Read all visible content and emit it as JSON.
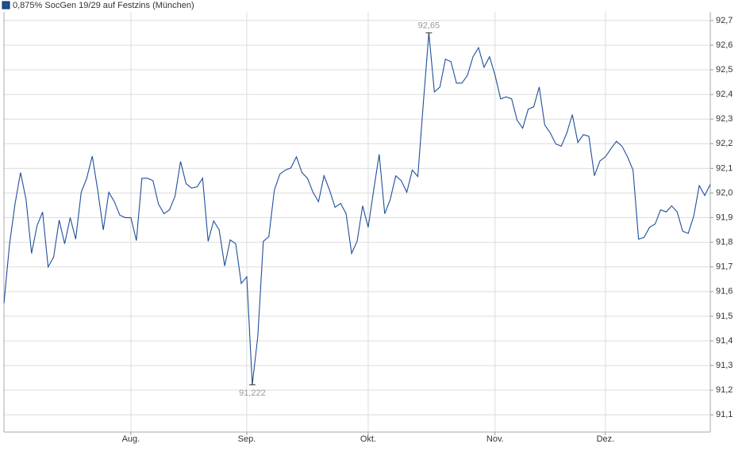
{
  "chart_data": {
    "type": "line",
    "title": "0,875% SocGen 19/29 auf Festzins (München)",
    "categories": [
      null,
      null,
      null,
      null,
      null,
      null,
      null,
      null,
      null,
      null,
      null,
      null,
      null,
      null,
      null,
      null,
      null,
      null,
      null,
      null,
      null,
      null,
      null,
      "Aug.",
      null,
      null,
      null,
      null,
      null,
      null,
      null,
      null,
      null,
      null,
      null,
      null,
      null,
      null,
      null,
      null,
      null,
      null,
      null,
      null,
      "Sep.",
      null,
      null,
      null,
      null,
      null,
      null,
      null,
      null,
      null,
      null,
      null,
      null,
      null,
      null,
      null,
      null,
      null,
      null,
      null,
      null,
      null,
      "Okt.",
      null,
      null,
      null,
      null,
      null,
      null,
      null,
      null,
      null,
      null,
      null,
      null,
      null,
      null,
      null,
      null,
      null,
      null,
      null,
      null,
      null,
      null,
      "Nov.",
      null,
      null,
      null,
      null,
      null,
      null,
      null,
      null,
      null,
      null,
      null,
      null,
      null,
      null,
      null,
      null,
      null,
      null,
      null,
      "Dez.",
      null,
      null,
      null,
      null,
      null,
      null,
      null,
      null,
      null,
      null,
      null,
      null,
      null,
      null,
      null,
      null,
      null,
      null,
      null
    ],
    "series": [
      {
        "name": "0,875% SocGen 19/29 auf Festzins (München)",
        "color": "#1f4f9a",
        "values": [
          91.553,
          91.79,
          91.955,
          92.083,
          91.974,
          91.755,
          91.868,
          91.923,
          91.7,
          91.74,
          91.89,
          91.794,
          91.9,
          91.813,
          92.003,
          92.06,
          92.15,
          92.01,
          91.85,
          92.003,
          91.965,
          91.91,
          91.9,
          91.9,
          91.807,
          92.06,
          92.06,
          92.05,
          91.955,
          91.916,
          91.932,
          91.987,
          92.128,
          92.038,
          92.02,
          92.025,
          92.06,
          91.804,
          91.887,
          91.85,
          91.704,
          91.81,
          91.794,
          91.633,
          91.66,
          91.222,
          91.418,
          91.804,
          91.823,
          92.012,
          92.077,
          92.093,
          92.102,
          92.147,
          92.083,
          92.06,
          92.003,
          91.965,
          92.07,
          92.012,
          91.942,
          91.958,
          91.916,
          91.755,
          91.804,
          91.948,
          91.861,
          92.012,
          92.157,
          91.916,
          91.974,
          92.07,
          92.05,
          92.003,
          92.093,
          92.067,
          92.366,
          92.65,
          92.41,
          92.43,
          92.543,
          92.533,
          92.446,
          92.446,
          92.478,
          92.553,
          92.59,
          92.51,
          92.553,
          92.478,
          92.382,
          92.39,
          92.382,
          92.295,
          92.263,
          92.34,
          92.35,
          92.43,
          92.276,
          92.244,
          92.199,
          92.19,
          92.244,
          92.318,
          92.205,
          92.237,
          92.23,
          92.07,
          92.13,
          92.147,
          92.18,
          92.21,
          92.19,
          92.147,
          92.093,
          91.813,
          91.82,
          91.861,
          91.874,
          91.932,
          91.923,
          91.948,
          91.923,
          91.845,
          91.836,
          91.906,
          92.03,
          91.99,
          92.035
        ]
      }
    ],
    "annotations": [
      {
        "value": 92.65,
        "label": "92,65"
      },
      {
        "value": 91.222,
        "label": "91,222"
      }
    ],
    "ylim": [
      91.03,
      92.735
    ],
    "yticks": [
      {
        "value": 91.1,
        "label": "91,1"
      },
      {
        "value": 91.2,
        "label": "91,2"
      },
      {
        "value": 91.3,
        "label": "91,3"
      },
      {
        "value": 91.4,
        "label": "91,4"
      },
      {
        "value": 91.5,
        "label": "91,5"
      },
      {
        "value": 91.6,
        "label": "91,6"
      },
      {
        "value": 91.7,
        "label": "91,7"
      },
      {
        "value": 91.8,
        "label": "91,8"
      },
      {
        "value": 91.9,
        "label": "91,9"
      },
      {
        "value": 92.0,
        "label": "92,0"
      },
      {
        "value": 92.1,
        "label": "92,1"
      },
      {
        "value": 92.2,
        "label": "92,2"
      },
      {
        "value": 92.3,
        "label": "92,3"
      },
      {
        "value": 92.4,
        "label": "92,4"
      },
      {
        "value": 92.5,
        "label": "92,5"
      },
      {
        "value": 92.6,
        "label": "92,6"
      },
      {
        "value": 92.7,
        "label": "92,7"
      }
    ],
    "grid": true
  }
}
